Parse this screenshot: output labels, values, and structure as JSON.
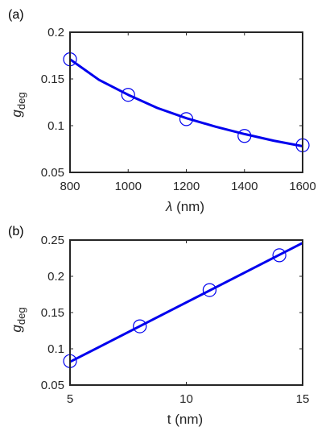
{
  "figure": {
    "accent_color": "#0000ee",
    "axis_color": "#262626"
  },
  "chart_data": [
    {
      "type": "line",
      "panel_label": "(a)",
      "xlabel_symbol": "λ",
      "xlabel_unit": " (nm)",
      "ylabel_main": "g",
      "ylabel_sub": "deg",
      "xlim": [
        800,
        1600
      ],
      "ylim": [
        0.05,
        0.2
      ],
      "xticks": [
        800,
        1000,
        1200,
        1400,
        1600
      ],
      "yticks": [
        0.05,
        0.1,
        0.15,
        0.2
      ],
      "xtick_labels": [
        "800",
        "1000",
        "1200",
        "1400",
        "1600"
      ],
      "ytick_labels": [
        "0.05",
        "0.1",
        "0.15",
        "0.2"
      ],
      "grid": false,
      "series": [
        {
          "kind": "markers",
          "marker": "open-circle",
          "x": [
            800,
            1000,
            1200,
            1400,
            1600
          ],
          "y": [
            0.171,
            0.133,
            0.107,
            0.089,
            0.079
          ]
        },
        {
          "kind": "fit-line",
          "x": [
            800,
            900,
            1000,
            1100,
            1200,
            1300,
            1400,
            1500,
            1600
          ],
          "y": [
            0.171,
            0.149,
            0.133,
            0.119,
            0.108,
            0.099,
            0.091,
            0.084,
            0.078
          ]
        }
      ]
    },
    {
      "type": "line",
      "panel_label": "(b)",
      "xlabel_symbol": "",
      "xlabel_unit": "t (nm)",
      "ylabel_main": "g",
      "ylabel_sub": "deg",
      "xlim": [
        5,
        15
      ],
      "ylim": [
        0.05,
        0.25
      ],
      "xticks": [
        5,
        10,
        15
      ],
      "yticks": [
        0.05,
        0.1,
        0.15,
        0.2,
        0.25
      ],
      "xtick_labels": [
        "5",
        "10",
        "15"
      ],
      "ytick_labels": [
        "0.05",
        "0.1",
        "0.15",
        "0.2",
        "0.25"
      ],
      "grid": false,
      "series": [
        {
          "kind": "markers",
          "marker": "open-circle",
          "x": [
            5,
            8,
            11,
            14
          ],
          "y": [
            0.083,
            0.131,
            0.181,
            0.229
          ]
        },
        {
          "kind": "fit-line",
          "x": [
            5,
            15
          ],
          "y": [
            0.082,
            0.246
          ]
        }
      ]
    }
  ]
}
